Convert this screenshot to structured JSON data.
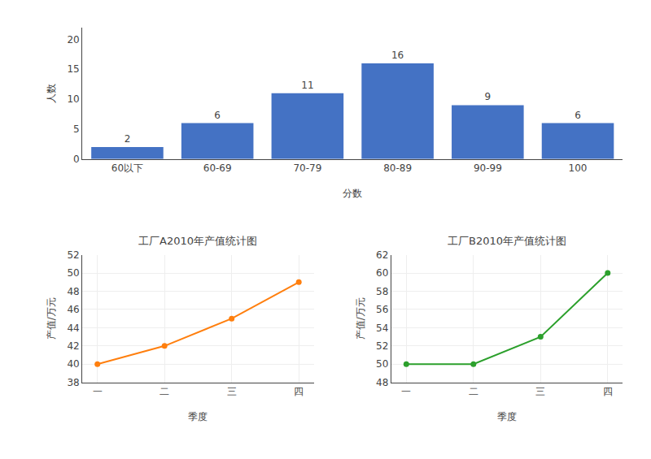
{
  "chart_data": [
    {
      "type": "bar",
      "x_label": "分数",
      "y_label": "人数",
      "categories": [
        "60以下",
        "60-69",
        "70-79",
        "80-89",
        "90-99",
        "100"
      ],
      "values": [
        2,
        6,
        11,
        16,
        9,
        6
      ],
      "color": "#4472C4",
      "ylim": [
        0,
        22
      ],
      "yticks": [
        0,
        5,
        10,
        15,
        20
      ],
      "grid": false,
      "data_labels": true
    },
    {
      "type": "line",
      "title": "工厂A2010年产值统计图",
      "x_label": "季度",
      "y_label": "产值/万元",
      "categories": [
        "一",
        "二",
        "三",
        "四"
      ],
      "values": [
        40,
        42,
        45,
        49
      ],
      "ylim": [
        38,
        52
      ],
      "yticks": [
        38,
        40,
        42,
        44,
        46,
        48,
        50,
        52
      ],
      "grid": true,
      "marker": "circle"
    },
    {
      "type": "line",
      "title": "工厂B2010年产值统计图",
      "x_label": "季度",
      "y_label": "产值/万元",
      "categories": [
        "一",
        "二",
        "三",
        "四"
      ],
      "values": [
        50,
        50,
        53,
        60
      ],
      "ylim": [
        48,
        62
      ],
      "yticks": [
        48,
        50,
        52,
        54,
        56,
        58,
        60,
        62
      ],
      "grid": true,
      "marker": "circle"
    }
  ]
}
